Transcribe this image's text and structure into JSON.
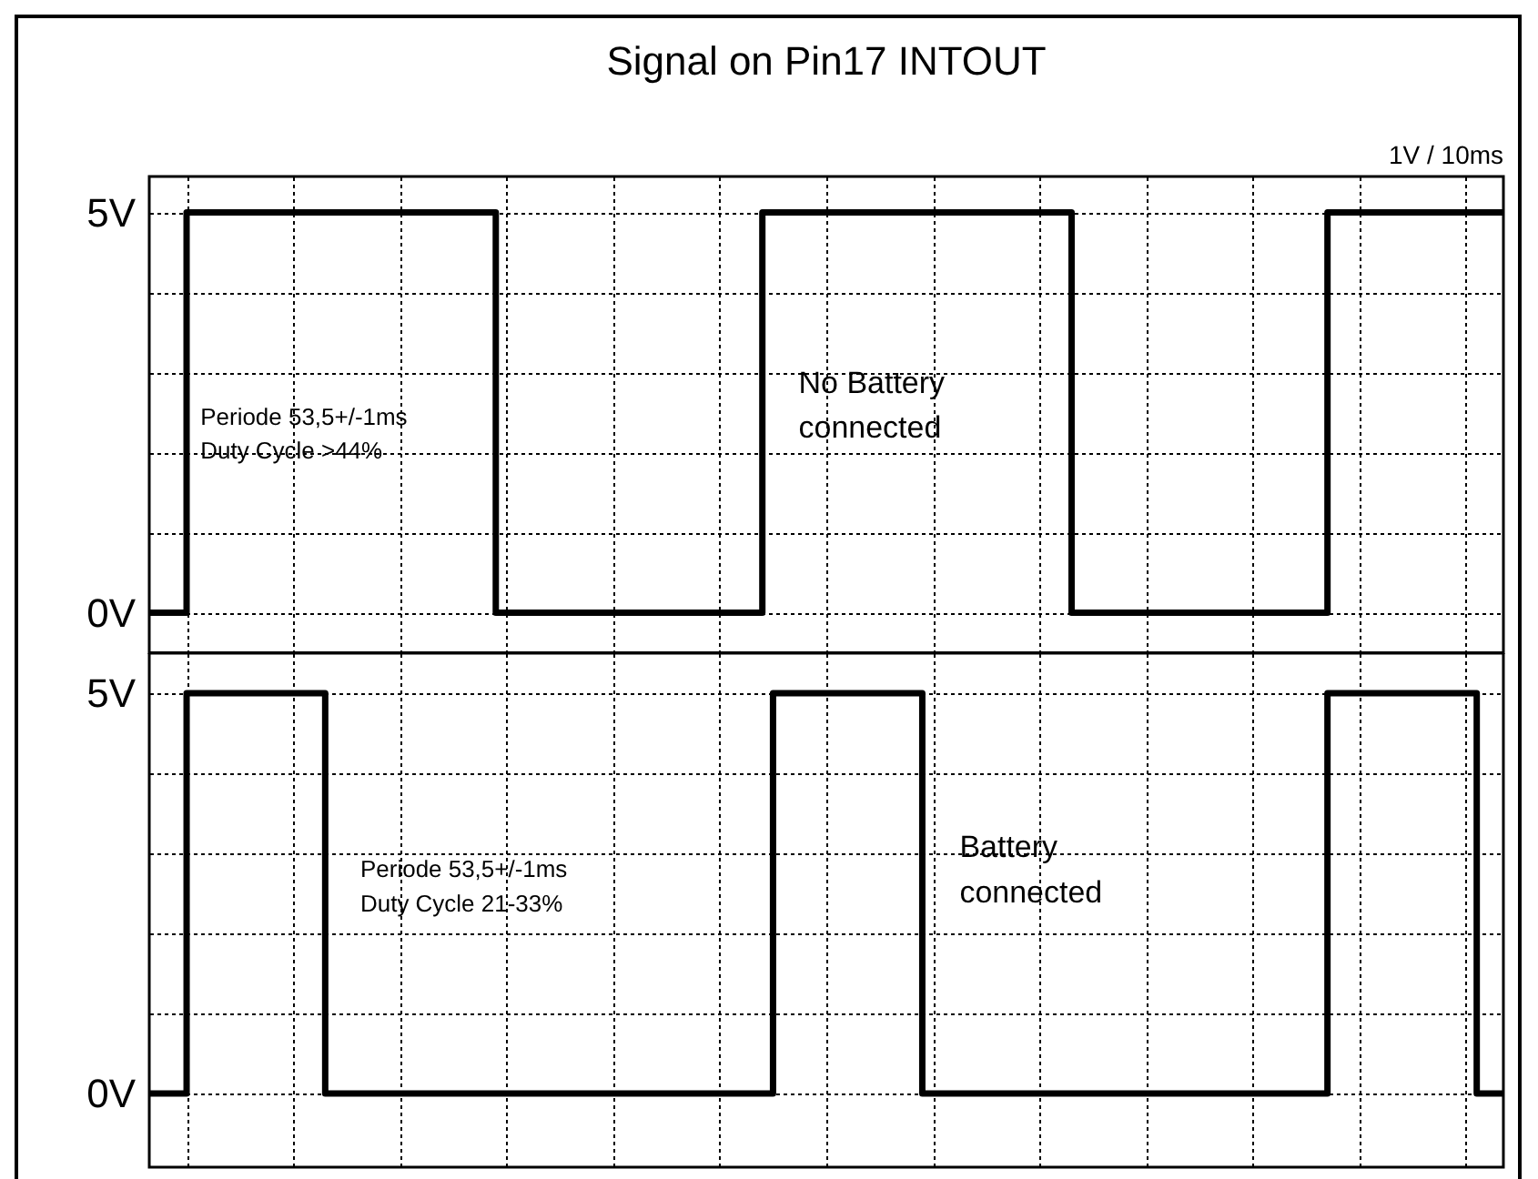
{
  "chart_data": [
    {
      "type": "step",
      "title": "Signal on Pin17 INTOUT",
      "annotations": [
        "1V / 10ms",
        "Periode 53,5+/-1ms\nDuty Cycle >44%",
        "No Battery\nconnected"
      ],
      "categories": [
        null,
        null,
        null,
        null,
        null,
        null,
        null,
        null,
        null,
        null,
        null,
        null,
        null,
        null,
        null,
        null,
        null,
        null,
        null,
        null,
        null,
        null,
        null,
        null,
        null,
        null,
        null,
        null,
        null,
        null,
        null,
        null,
        null,
        null,
        null,
        null,
        null,
        null,
        null,
        null,
        null,
        null,
        null,
        null,
        null,
        null,
        null,
        null,
        null,
        null,
        null,
        null,
        null,
        null,
        null,
        null,
        null,
        null,
        null,
        null,
        null,
        null,
        null,
        null,
        null,
        null,
        null,
        null,
        null,
        null,
        null,
        null,
        null,
        null,
        null,
        null,
        null,
        null,
        null,
        null,
        null,
        null,
        null,
        null,
        null,
        null,
        null,
        null,
        null,
        null,
        null,
        null,
        null,
        null,
        null,
        null,
        null,
        null,
        null,
        null,
        null,
        null,
        null,
        null,
        null,
        null,
        null,
        null,
        null,
        null,
        null,
        null,
        null,
        null,
        null,
        null,
        null,
        null,
        null,
        null,
        null,
        null,
        null,
        null,
        null,
        null,
        null,
        null
      ],
      "series": [
        {
          "color": "#000000",
          "values": [
            0,
            0,
            0,
            0,
            5,
            5,
            5,
            5,
            5,
            5,
            5,
            5,
            5,
            5,
            5,
            5,
            5,
            5,
            5,
            5,
            5,
            5,
            5,
            5,
            5,
            5,
            5,
            5,
            5,
            5,
            5,
            5,
            5,
            0,
            0,
            0,
            0,
            0,
            0,
            0,
            0,
            0,
            0,
            0,
            0,
            0,
            0,
            0,
            0,
            0,
            0,
            0,
            0,
            0,
            0,
            0,
            0,
            0,
            5,
            5,
            5,
            5,
            5,
            5,
            5,
            5,
            5,
            5,
            5,
            5,
            5,
            5,
            5,
            5,
            5,
            5,
            5,
            5,
            5,
            5,
            5,
            5,
            5,
            5,
            5,
            5,
            5,
            0,
            0,
            0,
            0,
            0,
            0,
            0,
            0,
            0,
            0,
            0,
            0,
            0,
            0,
            0,
            0,
            0,
            0,
            0,
            0,
            0,
            0,
            0,
            0,
            5,
            5,
            5,
            5,
            5,
            5,
            5,
            5,
            5,
            5,
            5,
            5,
            5,
            5,
            5,
            5,
            5
          ]
        }
      ],
      "ylim": [
        -0.5,
        5.45
      ],
      "yticks": [
        {
          "value": 0,
          "label": "0V"
        },
        {
          "value": 1,
          "label": null
        },
        {
          "value": 2,
          "label": null
        },
        {
          "value": 3,
          "label": null
        },
        {
          "value": 4,
          "label": null
        },
        {
          "value": 5,
          "label": "5V"
        }
      ],
      "grid": true,
      "tick_labels": "y",
      "line_style": "solid"
    },
    {
      "type": "step",
      "annotations": [
        "Periode 53,5+/-1ms\nDuty Cycle 21-33%",
        "Battery\nconnected"
      ],
      "categories": [
        null,
        null,
        null,
        null,
        null,
        null,
        null,
        null,
        null,
        null,
        null,
        null,
        null,
        null,
        null,
        null,
        null,
        null,
        null,
        null,
        null,
        null,
        null,
        null,
        null,
        null,
        null,
        null,
        null,
        null,
        null,
        null,
        null,
        null,
        null,
        null,
        null,
        null,
        null,
        null,
        null,
        null,
        null,
        null,
        null,
        null,
        null,
        null,
        null,
        null,
        null,
        null,
        null,
        null,
        null,
        null,
        null,
        null,
        null,
        null,
        null,
        null,
        null,
        null,
        null,
        null,
        null,
        null,
        null,
        null,
        null,
        null,
        null,
        null,
        null,
        null,
        null,
        null,
        null,
        null,
        null,
        null,
        null,
        null,
        null,
        null,
        null,
        null,
        null,
        null,
        null,
        null,
        null,
        null,
        null,
        null,
        null,
        null,
        null,
        null,
        null,
        null,
        null,
        null,
        null,
        null,
        null,
        null,
        null,
        null,
        null,
        null,
        null,
        null,
        null,
        null,
        null,
        null,
        null,
        null,
        null,
        null,
        null,
        null,
        null,
        null,
        null,
        null
      ],
      "series": [
        {
          "color": "#000000",
          "values": [
            0,
            0,
            0,
            0,
            5,
            5,
            5,
            5,
            5,
            5,
            5,
            5,
            5,
            5,
            5,
            5,
            5,
            0,
            0,
            0,
            0,
            0,
            0,
            0,
            0,
            0,
            0,
            0,
            0,
            0,
            0,
            0,
            0,
            0,
            0,
            0,
            0,
            0,
            0,
            0,
            0,
            0,
            0,
            0,
            0,
            0,
            0,
            0,
            0,
            0,
            0,
            0,
            0,
            0,
            0,
            0,
            0,
            0,
            0,
            5,
            5,
            5,
            5,
            5,
            5,
            5,
            5,
            5,
            5,
            5,
            5,
            5,
            5,
            0,
            0,
            0,
            0,
            0,
            0,
            0,
            0,
            0,
            0,
            0,
            0,
            0,
            0,
            0,
            0,
            0,
            0,
            0,
            0,
            0,
            0,
            0,
            0,
            0,
            0,
            0,
            0,
            0,
            0,
            0,
            0,
            0,
            0,
            0,
            0,
            0,
            0,
            5,
            5,
            5,
            5,
            5,
            5,
            5,
            5,
            5,
            5,
            5,
            5,
            5,
            5,
            0,
            0,
            0
          ]
        }
      ],
      "ylim": [
        -0.92,
        5.5
      ],
      "yticks": [
        {
          "value": 0,
          "label": "0V"
        },
        {
          "value": 1,
          "label": null
        },
        {
          "value": 2,
          "label": null
        },
        {
          "value": 3,
          "label": null
        },
        {
          "value": 4,
          "label": null
        },
        {
          "value": 5,
          "label": "5V"
        }
      ],
      "grid": true,
      "tick_labels": "y",
      "line_style": "solid"
    }
  ]
}
